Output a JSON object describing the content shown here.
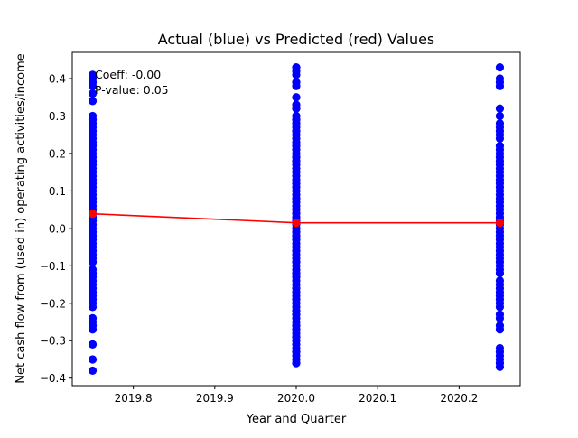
{
  "chart_data": {
    "type": "scatter",
    "title": "Actual (blue) vs Predicted (red) Values",
    "xlabel": "Year and Quarter",
    "ylabel": "Net cash flow from (used in) operating activities/income",
    "xlim": [
      2019.725,
      2020.275
    ],
    "ylim": [
      -0.42,
      0.47
    ],
    "xticks": [
      2019.8,
      2019.9,
      2020.0,
      2020.1,
      2020.2
    ],
    "xtick_labels": [
      "2019.8",
      "2019.9",
      "2020.0",
      "2020.1",
      "2020.2"
    ],
    "yticks": [
      -0.4,
      -0.3,
      -0.2,
      -0.1,
      0.0,
      0.1,
      0.2,
      0.3,
      0.4
    ],
    "ytick_labels": [
      "−0.4",
      "−0.3",
      "−0.2",
      "−0.1",
      "0.0",
      "0.1",
      "0.2",
      "0.3",
      "0.4"
    ],
    "grid": false,
    "annotations": [
      "Coeff: -0.00",
      "P-value: 0.05"
    ],
    "colors": {
      "actual": "#0000ff",
      "predicted": "#ff0000"
    },
    "series": [
      {
        "role": "actual",
        "points": [
          {
            "x": 2019.75,
            "values": [
              0.41,
              0.4,
              0.39,
              0.38,
              0.36,
              0.34,
              0.3,
              0.29,
              0.28,
              0.27,
              0.26,
              0.25,
              0.24,
              0.23,
              0.22,
              0.21,
              0.2,
              0.19,
              0.18,
              0.17,
              0.16,
              0.15,
              0.14,
              0.13,
              0.12,
              0.11,
              0.1,
              0.09,
              0.08,
              0.07,
              0.06,
              0.05,
              0.04,
              0.03,
              0.02,
              0.01,
              0.0,
              -0.01,
              -0.02,
              -0.03,
              -0.04,
              -0.05,
              -0.06,
              -0.07,
              -0.08,
              -0.09,
              -0.11,
              -0.12,
              -0.13,
              -0.14,
              -0.15,
              -0.16,
              -0.17,
              -0.18,
              -0.19,
              -0.2,
              -0.21,
              -0.24,
              -0.25,
              -0.26,
              -0.27,
              -0.31,
              -0.35,
              -0.38
            ]
          },
          {
            "x": 2020.0,
            "values": [
              0.43,
              0.42,
              0.41,
              0.39,
              0.38,
              0.35,
              0.33,
              0.32,
              0.3,
              0.29,
              0.28,
              0.27,
              0.26,
              0.25,
              0.24,
              0.23,
              0.22,
              0.21,
              0.2,
              0.19,
              0.18,
              0.17,
              0.16,
              0.15,
              0.14,
              0.13,
              0.12,
              0.11,
              0.1,
              0.09,
              0.08,
              0.07,
              0.06,
              0.05,
              0.04,
              0.03,
              0.02,
              0.01,
              0.0,
              -0.01,
              -0.02,
              -0.03,
              -0.04,
              -0.05,
              -0.06,
              -0.07,
              -0.08,
              -0.09,
              -0.1,
              -0.11,
              -0.12,
              -0.13,
              -0.14,
              -0.15,
              -0.16,
              -0.17,
              -0.18,
              -0.19,
              -0.2,
              -0.21,
              -0.22,
              -0.23,
              -0.24,
              -0.25,
              -0.26,
              -0.27,
              -0.28,
              -0.29,
              -0.3,
              -0.31,
              -0.32,
              -0.33,
              -0.34,
              -0.35,
              -0.36
            ]
          },
          {
            "x": 2020.25,
            "values": [
              0.43,
              0.4,
              0.39,
              0.38,
              0.32,
              0.3,
              0.28,
              0.27,
              0.26,
              0.25,
              0.24,
              0.22,
              0.21,
              0.2,
              0.19,
              0.18,
              0.17,
              0.16,
              0.15,
              0.14,
              0.13,
              0.12,
              0.11,
              0.1,
              0.09,
              0.08,
              0.07,
              0.06,
              0.05,
              0.04,
              0.03,
              0.02,
              0.01,
              0.0,
              -0.01,
              -0.02,
              -0.03,
              -0.04,
              -0.05,
              -0.06,
              -0.07,
              -0.08,
              -0.09,
              -0.1,
              -0.11,
              -0.12,
              -0.14,
              -0.15,
              -0.16,
              -0.17,
              -0.18,
              -0.19,
              -0.2,
              -0.21,
              -0.23,
              -0.24,
              -0.26,
              -0.27,
              -0.32,
              -0.33,
              -0.34,
              -0.35,
              -0.36,
              -0.37
            ]
          }
        ]
      },
      {
        "role": "predicted",
        "x": [
          2019.75,
          2020.0,
          2020.25
        ],
        "y": [
          0.039,
          0.015,
          0.015
        ]
      }
    ]
  }
}
